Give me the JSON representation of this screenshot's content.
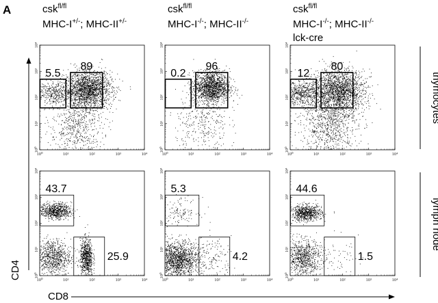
{
  "figure": {
    "panel_label": "A",
    "x_axis_label": "CD8",
    "y_axis_label": "CD4",
    "row_labels": [
      "thymocytes",
      "lymph node"
    ],
    "columns": [
      {
        "line1_base": "csk",
        "line1_sup": "fl/fl",
        "line2": [
          [
            "MHC-I",
            "+/-"
          ],
          [
            "; MHC-II",
            "+/-"
          ]
        ],
        "line3": ""
      },
      {
        "line1_base": "csk",
        "line1_sup": "fl/fl",
        "line2": [
          [
            "MHC-I",
            "-/-"
          ],
          [
            "; MHC-II",
            "-/-"
          ]
        ],
        "line3": ""
      },
      {
        "line1_base": "csk",
        "line1_sup": "fl/fl",
        "line2": [
          [
            "MHC-I",
            "-/-"
          ],
          [
            "; MHC-II",
            "-/-"
          ]
        ],
        "line3": "lck-cre"
      }
    ]
  },
  "chart_data": {
    "type": "scatter",
    "xlabel": "CD8",
    "ylabel": "CD4",
    "xscale": "log",
    "yscale": "log",
    "xlim": [
      1,
      10000
    ],
    "ylim": [
      1,
      10000
    ],
    "tick_labels": [
      "10⁰",
      "10¹",
      "10²",
      "10³",
      "10⁴"
    ],
    "panels": [
      {
        "row": "thymocytes",
        "column": 0,
        "gates": [
          {
            "name": "CD4 single positive",
            "percent": "5.5",
            "x_range": [
              1,
              10
            ],
            "y_range": [
              40,
              500
            ]
          },
          {
            "name": "double positive",
            "percent": "89",
            "x_range": [
              15,
              250
            ],
            "y_range": [
              40,
              900
            ]
          }
        ],
        "populations": [
          {
            "center": [
              70,
              200
            ],
            "spread": [
              0.45,
              0.35
            ],
            "weight": 1800
          },
          {
            "center": [
              3,
              150
            ],
            "spread": [
              0.35,
              0.22
            ],
            "weight": 350
          },
          {
            "center": [
              25,
              8
            ],
            "spread": [
              0.5,
              0.6
            ],
            "weight": 600
          }
        ]
      },
      {
        "row": "thymocytes",
        "column": 1,
        "gates": [
          {
            "name": "CD4 single positive",
            "percent": "0.2",
            "x_range": [
              1,
              10
            ],
            "y_range": [
              40,
              500
            ]
          },
          {
            "name": "double positive",
            "percent": "96",
            "x_range": [
              15,
              250
            ],
            "y_range": [
              40,
              900
            ]
          }
        ],
        "populations": [
          {
            "center": [
              60,
              250
            ],
            "spread": [
              0.35,
              0.3
            ],
            "weight": 1500
          },
          {
            "center": [
              25,
              10
            ],
            "spread": [
              0.5,
              0.6
            ],
            "weight": 300
          }
        ]
      },
      {
        "row": "thymocytes",
        "column": 2,
        "gates": [
          {
            "name": "CD4 single positive",
            "percent": "12",
            "x_range": [
              1,
              10
            ],
            "y_range": [
              40,
              500
            ]
          },
          {
            "name": "double positive",
            "percent": "80",
            "x_range": [
              15,
              250
            ],
            "y_range": [
              40,
              900
            ]
          }
        ],
        "populations": [
          {
            "center": [
              70,
              180
            ],
            "spread": [
              0.5,
              0.4
            ],
            "weight": 1800
          },
          {
            "center": [
              3,
              150
            ],
            "spread": [
              0.35,
              0.22
            ],
            "weight": 500
          },
          {
            "center": [
              30,
              10
            ],
            "spread": [
              0.55,
              0.65
            ],
            "weight": 900
          }
        ]
      },
      {
        "row": "lymph node",
        "column": 0,
        "gates": [
          {
            "name": "CD4 single positive",
            "percent": "43.7",
            "x_range": [
              1,
              20
            ],
            "y_range": [
              80,
              1200
            ]
          },
          {
            "name": "CD8 single positive",
            "percent": "25.9",
            "x_range": [
              20,
              300
            ],
            "y_range": [
              1,
              30
            ]
          }
        ],
        "populations": [
          {
            "center": [
              4,
              300
            ],
            "spread": [
              0.3,
              0.15
            ],
            "weight": 700
          },
          {
            "center": [
              3,
              5
            ],
            "spread": [
              0.35,
              0.35
            ],
            "weight": 800
          },
          {
            "center": [
              60,
              5
            ],
            "spread": [
              0.12,
              0.35
            ],
            "weight": 700
          }
        ]
      },
      {
        "row": "lymph node",
        "column": 1,
        "gates": [
          {
            "name": "CD4 single positive",
            "percent": "5.3",
            "x_range": [
              1,
              20
            ],
            "y_range": [
              80,
              1200
            ]
          },
          {
            "name": "CD8 single positive",
            "percent": "4.2",
            "x_range": [
              20,
              300
            ],
            "y_range": [
              1,
              30
            ]
          }
        ],
        "populations": [
          {
            "center": [
              4,
              300
            ],
            "spread": [
              0.35,
              0.25
            ],
            "weight": 120
          },
          {
            "center": [
              3,
              4
            ],
            "spread": [
              0.4,
              0.35
            ],
            "weight": 1400
          },
          {
            "center": [
              60,
              5
            ],
            "spread": [
              0.4,
              0.4
            ],
            "weight": 150
          }
        ]
      },
      {
        "row": "lymph node",
        "column": 2,
        "gates": [
          {
            "name": "CD4 single positive",
            "percent": "44.6",
            "x_range": [
              1,
              20
            ],
            "y_range": [
              80,
              1200
            ]
          },
          {
            "name": "CD8 single positive",
            "percent": "1.5",
            "x_range": [
              20,
              300
            ],
            "y_range": [
              1,
              30
            ]
          }
        ],
        "populations": [
          {
            "center": [
              4,
              250
            ],
            "spread": [
              0.3,
              0.15
            ],
            "weight": 700
          },
          {
            "center": [
              3,
              5
            ],
            "spread": [
              0.35,
              0.35
            ],
            "weight": 800
          },
          {
            "center": [
              60,
              5
            ],
            "spread": [
              0.4,
              0.4
            ],
            "weight": 60
          }
        ]
      }
    ]
  }
}
